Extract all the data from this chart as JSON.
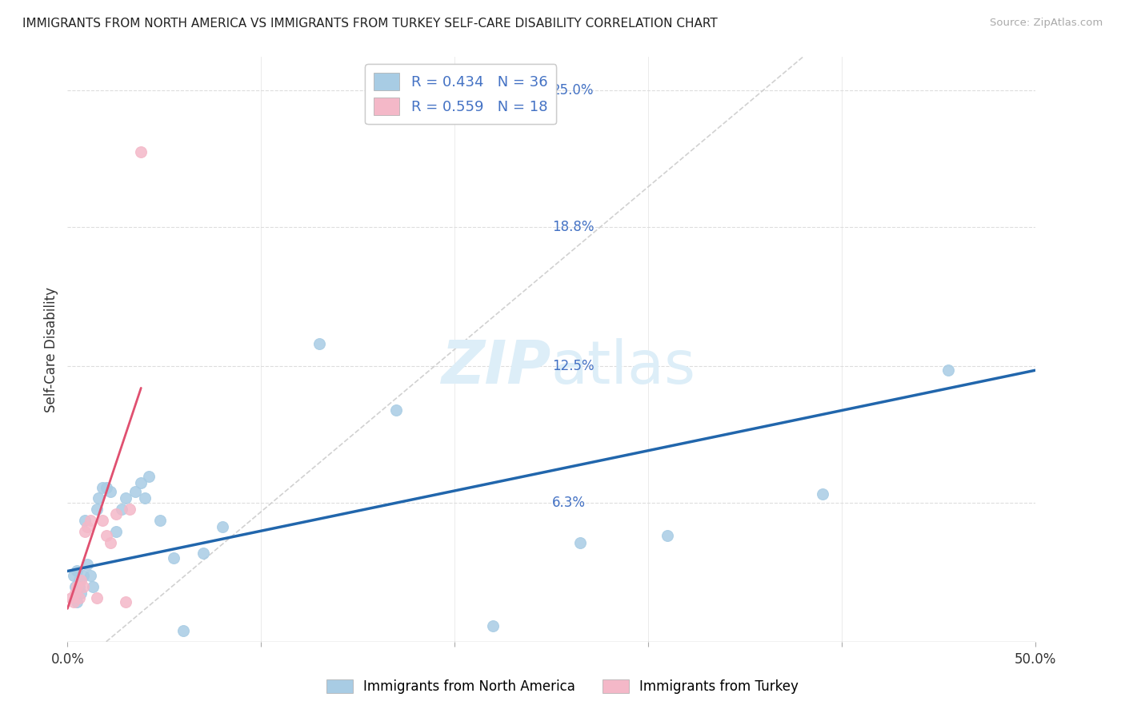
{
  "title": "IMMIGRANTS FROM NORTH AMERICA VS IMMIGRANTS FROM TURKEY SELF-CARE DISABILITY CORRELATION CHART",
  "source": "Source: ZipAtlas.com",
  "ylabel": "Self-Care Disability",
  "ytick_vals": [
    0.063,
    0.125,
    0.188,
    0.25
  ],
  "ytick_labels": [
    "6.3%",
    "12.5%",
    "18.8%",
    "25.0%"
  ],
  "xlim": [
    0.0,
    0.5
  ],
  "ylim": [
    0.0,
    0.265
  ],
  "legend_label1": "Immigrants from North America",
  "legend_label2": "Immigrants from Turkey",
  "R1": 0.434,
  "N1": 36,
  "R2": 0.559,
  "N2": 18,
  "blue_scatter_color": "#a8cce4",
  "pink_scatter_color": "#f4b8c8",
  "blue_line_color": "#2166ac",
  "pink_line_color": "#e05070",
  "dashed_line_color": "#cccccc",
  "watermark_color": "#ddeef8",
  "north_america_x": [
    0.003,
    0.004,
    0.005,
    0.005,
    0.006,
    0.006,
    0.007,
    0.008,
    0.009,
    0.01,
    0.012,
    0.013,
    0.015,
    0.016,
    0.018,
    0.02,
    0.022,
    0.025,
    0.028,
    0.03,
    0.035,
    0.038,
    0.04,
    0.042,
    0.048,
    0.055,
    0.06,
    0.07,
    0.08,
    0.13,
    0.17,
    0.22,
    0.265,
    0.31,
    0.39,
    0.455
  ],
  "north_america_y": [
    0.03,
    0.025,
    0.032,
    0.018,
    0.028,
    0.025,
    0.022,
    0.03,
    0.055,
    0.035,
    0.03,
    0.025,
    0.06,
    0.065,
    0.07,
    0.07,
    0.068,
    0.05,
    0.06,
    0.065,
    0.068,
    0.072,
    0.065,
    0.075,
    0.055,
    0.038,
    0.005,
    0.04,
    0.052,
    0.135,
    0.105,
    0.007,
    0.045,
    0.048,
    0.067,
    0.123
  ],
  "turkey_x": [
    0.002,
    0.003,
    0.004,
    0.005,
    0.006,
    0.007,
    0.008,
    0.009,
    0.01,
    0.012,
    0.015,
    0.018,
    0.02,
    0.022,
    0.025,
    0.03,
    0.032,
    0.038
  ],
  "turkey_y": [
    0.02,
    0.018,
    0.022,
    0.025,
    0.02,
    0.028,
    0.025,
    0.05,
    0.052,
    0.055,
    0.02,
    0.055,
    0.048,
    0.045,
    0.058,
    0.018,
    0.06,
    0.222
  ],
  "blue_line_x": [
    0.0,
    0.5
  ],
  "blue_line_y": [
    0.032,
    0.123
  ],
  "pink_line_x": [
    0.0,
    0.038
  ],
  "pink_line_y": [
    0.015,
    0.115
  ],
  "dash_line_x": [
    0.02,
    0.38
  ],
  "dash_line_y": [
    0.0,
    0.265
  ]
}
